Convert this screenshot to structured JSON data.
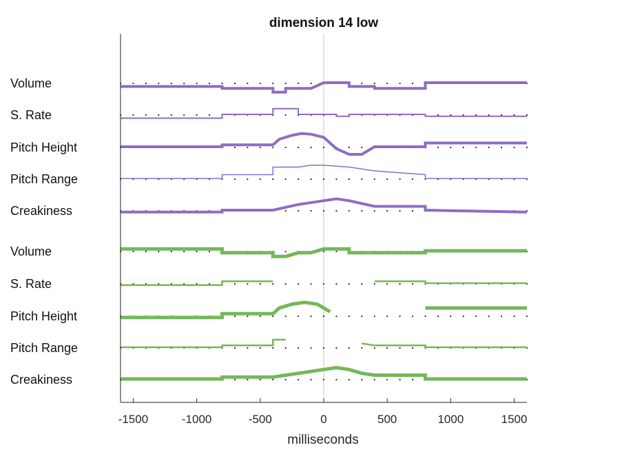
{
  "chart_data": {
    "type": "line",
    "title": "dimension 14 low",
    "xlabel": "milliseconds",
    "xlim": [
      -1600,
      1600
    ],
    "xticks": [
      -1500,
      -1000,
      -500,
      0,
      500,
      1000,
      1500
    ],
    "reference_line_x": 0,
    "grid": false,
    "colors": {
      "low_group": "#8e6cc3",
      "high_group": "#74b85a",
      "baseline_dots": "#222222",
      "zero_line": "#c8c8c8"
    },
    "groups": [
      {
        "color_key": "low_group",
        "series": [
          {
            "name": "Volume",
            "width": 4,
            "values": [
              [
                -1600,
                -1
              ],
              [
                -800,
                -1
              ],
              [
                -800,
                -1.5
              ],
              [
                -400,
                -1.5
              ],
              [
                -400,
                -2.5
              ],
              [
                -300,
                -2.5
              ],
              [
                -300,
                -1.5
              ],
              [
                -100,
                -1.5
              ],
              [
                0,
                0
              ],
              [
                200,
                0
              ],
              [
                200,
                -1
              ],
              [
                400,
                -1
              ],
              [
                400,
                -1.5
              ],
              [
                800,
                -1.5
              ],
              [
                800,
                0
              ],
              [
                1600,
                0
              ]
            ]
          },
          {
            "name": "S. Rate",
            "width": 2,
            "values": [
              [
                -1600,
                -1
              ],
              [
                -800,
                -1
              ],
              [
                -800,
                0
              ],
              [
                -400,
                0
              ],
              [
                -400,
                1.5
              ],
              [
                -200,
                1.5
              ],
              [
                -200,
                0
              ],
              [
                100,
                0
              ],
              [
                100,
                -0.5
              ],
              [
                200,
                -0.5
              ],
              [
                200,
                0
              ],
              [
                800,
                0
              ],
              [
                800,
                -0.5
              ],
              [
                1600,
                -0.5
              ]
            ]
          },
          {
            "name": "Pitch Height",
            "width": 4,
            "values": [
              [
                -1600,
                0
              ],
              [
                -800,
                0
              ],
              [
                -800,
                0.5
              ],
              [
                -400,
                0.5
              ],
              [
                -350,
                2
              ],
              [
                -250,
                3
              ],
              [
                -175,
                3.5
              ],
              [
                -100,
                3.3
              ],
              [
                0,
                2.5
              ],
              [
                100,
                -0.5
              ],
              [
                200,
                -2
              ],
              [
                300,
                -2
              ],
              [
                400,
                0
              ],
              [
                800,
                0
              ],
              [
                800,
                1
              ],
              [
                1600,
                1
              ]
            ]
          },
          {
            "name": "Pitch Range",
            "width": 1.5,
            "values": [
              [
                -1600,
                0
              ],
              [
                -800,
                0
              ],
              [
                -800,
                1
              ],
              [
                -400,
                1
              ],
              [
                -400,
                3
              ],
              [
                -200,
                3
              ],
              [
                -100,
                3.5
              ],
              [
                0,
                3.5
              ],
              [
                200,
                3
              ],
              [
                400,
                2
              ],
              [
                800,
                1
              ],
              [
                800,
                0
              ],
              [
                1600,
                0
              ]
            ]
          },
          {
            "name": "Creakiness",
            "width": 4,
            "values": [
              [
                -1600,
                -0.5
              ],
              [
                -800,
                -0.5
              ],
              [
                -800,
                0
              ],
              [
                -400,
                0
              ],
              [
                -200,
                1.5
              ],
              [
                0,
                2.5
              ],
              [
                100,
                3
              ],
              [
                200,
                2.5
              ],
              [
                400,
                1
              ],
              [
                800,
                1
              ],
              [
                800,
                0
              ],
              [
                1600,
                -0.5
              ]
            ]
          }
        ]
      },
      {
        "color_key": "high_group",
        "series": [
          {
            "name": "Volume",
            "width": 5,
            "values": [
              [
                -1600,
                0.5
              ],
              [
                -800,
                0.5
              ],
              [
                -800,
                -0.5
              ],
              [
                -400,
                -0.5
              ],
              [
                -400,
                -1.5
              ],
              [
                -300,
                -1.5
              ],
              [
                -200,
                -0.5
              ],
              [
                -100,
                -0.5
              ],
              [
                0,
                0.5
              ],
              [
                200,
                0.5
              ],
              [
                200,
                -0.5
              ],
              [
                800,
                -0.5
              ],
              [
                800,
                0
              ],
              [
                1600,
                0
              ]
            ]
          },
          {
            "name": "S. Rate",
            "width": 2.5,
            "values": [
              [
                -1600,
                -0.5
              ],
              [
                -800,
                -0.5
              ],
              [
                -800,
                0.5
              ],
              [
                -400,
                0.5
              ],
              null,
              [
                400,
                0.5
              ],
              [
                800,
                0.5
              ],
              [
                800,
                0
              ],
              [
                1600,
                0
              ]
            ]
          },
          {
            "name": "Pitch Height",
            "width": 5,
            "values": [
              [
                -1600,
                -0.5
              ],
              [
                -800,
                -0.5
              ],
              [
                -800,
                0.5
              ],
              [
                -400,
                0.5
              ],
              [
                -350,
                2
              ],
              [
                -250,
                3
              ],
              [
                -150,
                3.5
              ],
              [
                -50,
                3
              ],
              [
                50,
                1
              ],
              null,
              [
                800,
                2
              ],
              [
                1600,
                2
              ]
            ]
          },
          {
            "name": "Pitch Range",
            "width": 2.5,
            "values": [
              [
                -1600,
                0
              ],
              [
                -800,
                0
              ],
              [
                -800,
                0.5
              ],
              [
                -400,
                0.5
              ],
              [
                -400,
                2
              ],
              [
                -300,
                2
              ],
              null,
              [
                300,
                1
              ],
              [
                400,
                0.5
              ],
              [
                800,
                0.5
              ],
              [
                800,
                0
              ],
              [
                1600,
                0
              ]
            ]
          },
          {
            "name": "Creakiness",
            "width": 5,
            "values": [
              [
                -1600,
                0
              ],
              [
                -800,
                0
              ],
              [
                -800,
                0.5
              ],
              [
                -400,
                0.5
              ],
              [
                -300,
                1
              ],
              [
                -200,
                1.5
              ],
              [
                0,
                2.5
              ],
              [
                100,
                3
              ],
              [
                200,
                2.5
              ],
              [
                300,
                1.5
              ],
              [
                400,
                1
              ],
              [
                800,
                1
              ],
              [
                800,
                0
              ],
              [
                1600,
                0
              ]
            ]
          }
        ]
      }
    ]
  }
}
